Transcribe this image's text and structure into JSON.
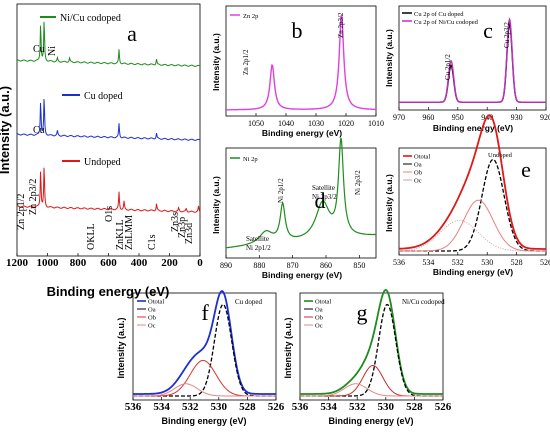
{
  "chart_data": [
    {
      "id": "a",
      "type": "line",
      "letter": "a",
      "xlabel": "Binding energy (eV)",
      "ylabel": "Intensity (a.u.)",
      "xlim": [
        1200,
        0
      ],
      "xticks": [
        "1200",
        "1000",
        "800",
        "600",
        "400",
        "200",
        "0"
      ],
      "series": [
        {
          "name": "Ni/Cu codoped",
          "color": "#1e8c1e",
          "peaks": [
            [
              1045,
              0.55
            ],
            [
              1022,
              0.6
            ],
            [
              935,
              0.05
            ],
            [
              855,
              0.06
            ],
            [
              531,
              0.2
            ],
            [
              285,
              0.08
            ]
          ]
        },
        {
          "name": "Cu doped",
          "color": "#1c2fd4",
          "peaks": [
            [
              1045,
              0.5
            ],
            [
              1022,
              0.55
            ],
            [
              935,
              0.07
            ],
            [
              531,
              0.2
            ],
            [
              285,
              0.08
            ]
          ]
        },
        {
          "name": "Undoped",
          "color": "#e01818",
          "peaks": [
            [
              1045,
              0.55
            ],
            [
              1022,
              0.6
            ],
            [
              531,
              0.25
            ],
            [
              498,
              0.12
            ],
            [
              285,
              0.1
            ],
            [
              140,
              0.05
            ],
            [
              90,
              0.05
            ],
            [
              10,
              0.08
            ]
          ]
        }
      ],
      "annotations": [
        "Cu",
        "Ni",
        "Cu",
        "Zn 2p1/2",
        "Zn 2p3/2",
        "OKLL",
        "ZnKLL",
        "ZnLMM",
        "O1s",
        "C1s",
        "Zn3s",
        "Zn3p",
        "Zn3d"
      ]
    },
    {
      "id": "b",
      "type": "line",
      "letter": "b",
      "xlabel": "Binding energy (eV)",
      "ylabel": "Intensity (a.u.)",
      "xlim": [
        1060,
        1010
      ],
      "xticks": [
        "1050",
        "1040",
        "1030",
        "1020",
        "1010"
      ],
      "series": [
        {
          "name": "Zn 2p",
          "color": "#e040e0",
          "peaks": [
            [
              1044.6,
              0.45
            ],
            [
              1021.5,
              0.95
            ]
          ]
        }
      ],
      "annotations": [
        "Zn 2p1/2",
        "Zn 2p3/2"
      ]
    },
    {
      "id": "c",
      "type": "line",
      "letter": "c",
      "xlabel": "Binding energy (eV)",
      "ylabel": "Intensity (a.u.)",
      "xlim": [
        970,
        920
      ],
      "xticks": [
        "970",
        "960",
        "950",
        "940",
        "930",
        "920"
      ],
      "series": [
        {
          "name": "Cu 2p of Cu doped",
          "color": "#000000",
          "peaks": [
            [
              952.3,
              0.4
            ],
            [
              932.4,
              0.85
            ]
          ]
        },
        {
          "name": "Cu 2p of Ni/Cu codoped",
          "color": "#c030c0",
          "peaks": [
            [
              952.3,
              0.45
            ],
            [
              932.4,
              0.9
            ]
          ]
        }
      ],
      "annotations": [
        "Cu 2p1/2",
        "Cu 2p3/2"
      ]
    },
    {
      "id": "d",
      "type": "line",
      "letter": "d",
      "xlabel": "Binding energy (eV)",
      "ylabel": "Intensity (a.u.)",
      "xlim": [
        890,
        845
      ],
      "xticks": [
        "890",
        "880",
        "870",
        "860",
        "850"
      ],
      "series": [
        {
          "name": "Ni 2p",
          "color": "#1e8c1e",
          "peaks": [
            [
              873,
              0.35
            ],
            [
              878,
              0.12
            ],
            [
              855.5,
              0.9
            ],
            [
              861,
              0.35
            ]
          ]
        }
      ],
      "annotations": [
        "Ni 2p1/2",
        "Satellite",
        "Ni 2p1/2",
        "Satellite",
        "Ni 2p3/2",
        "Ni 2p3/2"
      ]
    },
    {
      "id": "e",
      "type": "line",
      "letter": "e",
      "xlabel": "Binding energy (eV)",
      "ylabel": "Intensity (a.u.)",
      "xlim": [
        536,
        526
      ],
      "xticks": [
        "536",
        "534",
        "532",
        "530",
        "528",
        "526"
      ],
      "series": [
        {
          "name": "Ototal",
          "color": "#e01818",
          "peaks": []
        },
        {
          "name": "Oa",
          "color": "#000000",
          "peaks": [
            [
              529.6,
              0.9
            ]
          ]
        },
        {
          "name": "Ob",
          "color": "#e88080",
          "peaks": [
            [
              530.6,
              0.5
            ]
          ]
        },
        {
          "name": "Oc",
          "color": "#d0a0a0",
          "peaks": [
            [
              531.9,
              0.3
            ]
          ]
        }
      ],
      "tag": "Undoped"
    },
    {
      "id": "f",
      "type": "line",
      "letter": "f",
      "xlabel": "Binding energy (eV)",
      "ylabel": "Intensity (a.u.)",
      "xlim": [
        536,
        526
      ],
      "xticks": [
        "536",
        "534",
        "532",
        "530",
        "528",
        "526"
      ],
      "series": [
        {
          "name": "Ototal",
          "color": "#1c2fd4",
          "peaks": []
        },
        {
          "name": "Oa",
          "color": "#000000",
          "peaks": [
            [
              529.7,
              0.9
            ]
          ]
        },
        {
          "name": "Ob",
          "color": "#e03030",
          "peaks": [
            [
              531.1,
              0.35
            ]
          ]
        },
        {
          "name": "Oc",
          "color": "#e08888",
          "peaks": [
            [
              532.3,
              0.12
            ]
          ]
        }
      ],
      "tag": "Cu doped"
    },
    {
      "id": "g",
      "type": "line",
      "letter": "g",
      "xlabel": "Binding energy (eV)",
      "ylabel": "Intensity (a.u.)",
      "xlim": [
        536,
        526
      ],
      "xticks": [
        "536",
        "534",
        "532",
        "530",
        "528",
        "526"
      ],
      "series": [
        {
          "name": "Ototal",
          "color": "#1e8c1e",
          "peaks": []
        },
        {
          "name": "Oa",
          "color": "#000000",
          "peaks": [
            [
              529.9,
              0.9
            ]
          ]
        },
        {
          "name": "Ob",
          "color": "#c03030",
          "peaks": [
            [
              530.9,
              0.3
            ]
          ]
        },
        {
          "name": "Oc",
          "color": "#e08888",
          "peaks": [
            [
              532.1,
              0.12
            ]
          ]
        }
      ],
      "tag": "Ni/Cu codoped"
    }
  ]
}
